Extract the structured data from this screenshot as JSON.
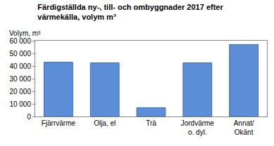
{
  "chart_data": {
    "type": "bar",
    "title": "Färdigställda ny-, till- och ombyggnader 2017 efter värmekälla, volym m³",
    "y_label": "Volym, m³",
    "categories": [
      "Fjärrvärme",
      "Olja, el",
      "Trä",
      "Jordvärme o. dyl.",
      "Annat/ Okänt"
    ],
    "values": [
      43000,
      42500,
      7000,
      42500,
      57000
    ],
    "color": "#5b8ed6",
    "ylim": [
      0,
      60000
    ],
    "yticks": [
      0,
      {
        "value": 10000,
        "label": "10 000"
      },
      {
        "value": 20000,
        "label": "20 000"
      },
      {
        "value": 30000,
        "label": "30 000"
      },
      {
        "value": 40000,
        "label": "40 000"
      },
      {
        "value": 50000,
        "label": "50 000"
      },
      {
        "value": 60000,
        "label": "60 000"
      }
    ],
    "grid": false
  }
}
